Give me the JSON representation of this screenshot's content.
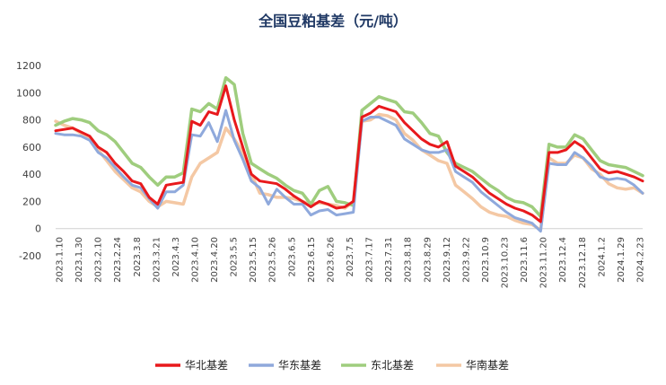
{
  "chart_data": {
    "type": "line",
    "title": "全国豆粕基差（元/吨）",
    "xlabel": "",
    "ylabel": "",
    "ylim": [
      -200,
      1200
    ],
    "yticks": [
      -200,
      0,
      200,
      400,
      600,
      800,
      1000,
      1200
    ],
    "grid": false,
    "legend_position": "bottom",
    "x_tick_labels": [
      "2023.1.10",
      "2023.1.30",
      "2023.2.10",
      "2023.2.24",
      "2023.3.8",
      "2023.3.21",
      "2023.4.3",
      "2023.4.10",
      "2023.4.20",
      "2023.5.5",
      "2023.5.15",
      "2023.5.26",
      "2023.6.5",
      "2023.6.15",
      "2023.6.26",
      "2023.7.5",
      "2023.7.17",
      "2023.7.31",
      "2023.8.18",
      "2023.8.29",
      "2023.9.12",
      "2023.9.22",
      "2023.10.9",
      "2023.10.23",
      "2023.11.6",
      "2023.11.20",
      "2023.12.4",
      "2023.12.18",
      "2024.1.2",
      "2024.1.29",
      "2024.2.23"
    ],
    "series": [
      {
        "name": "华北基差",
        "color": "#e8191c",
        "values": [
          720,
          730,
          740,
          710,
          680,
          600,
          560,
          480,
          420,
          350,
          330,
          230,
          180,
          320,
          330,
          340,
          790,
          760,
          860,
          840,
          1050,
          800,
          600,
          400,
          350,
          340,
          330,
          290,
          240,
          200,
          160,
          200,
          180,
          150,
          160,
          200,
          820,
          850,
          900,
          880,
          860,
          780,
          720,
          660,
          620,
          600,
          640,
          460,
          420,
          380,
          320,
          260,
          220,
          180,
          150,
          130,
          100,
          50,
          560,
          560,
          580,
          640,
          600,
          520,
          440,
          410,
          420,
          400,
          380,
          350
        ]
      },
      {
        "name": "华东基差",
        "color": "#8fa9dc",
        "values": [
          700,
          690,
          690,
          680,
          650,
          560,
          520,
          450,
          380,
          320,
          300,
          220,
          150,
          270,
          270,
          320,
          690,
          680,
          780,
          640,
          870,
          650,
          510,
          350,
          300,
          180,
          290,
          230,
          180,
          180,
          100,
          130,
          140,
          100,
          110,
          120,
          790,
          820,
          820,
          790,
          760,
          660,
          620,
          580,
          560,
          560,
          580,
          420,
          380,
          340,
          270,
          220,
          170,
          120,
          80,
          60,
          40,
          -20,
          480,
          470,
          470,
          560,
          520,
          460,
          380,
          360,
          370,
          360,
          320,
          260
        ]
      },
      {
        "name": "东北基差",
        "color": "#9fcd7e",
        "values": [
          760,
          790,
          810,
          800,
          780,
          720,
          690,
          640,
          560,
          480,
          450,
          380,
          320,
          380,
          380,
          410,
          880,
          860,
          920,
          880,
          1110,
          1060,
          700,
          480,
          440,
          400,
          370,
          320,
          280,
          260,
          180,
          280,
          310,
          200,
          190,
          170,
          870,
          920,
          970,
          950,
          930,
          860,
          850,
          780,
          700,
          680,
          560,
          480,
          450,
          420,
          370,
          320,
          280,
          230,
          200,
          190,
          160,
          90,
          620,
          600,
          600,
          690,
          660,
          580,
          500,
          470,
          460,
          450,
          420,
          390
        ]
      },
      {
        "name": "华南基差",
        "color": "#f4c8a4",
        "values": [
          790,
          760,
          740,
          700,
          660,
          580,
          500,
          420,
          360,
          300,
          270,
          200,
          160,
          200,
          190,
          180,
          380,
          480,
          520,
          560,
          740,
          660,
          560,
          400,
          260,
          250,
          230,
          230,
          220,
          200,
          180,
          190,
          180,
          170,
          150,
          200,
          790,
          800,
          840,
          830,
          800,
          700,
          650,
          580,
          540,
          500,
          480,
          320,
          270,
          220,
          160,
          120,
          100,
          90,
          60,
          40,
          30,
          -10,
          520,
          480,
          480,
          540,
          520,
          440,
          400,
          330,
          300,
          290,
          300,
          260
        ]
      }
    ]
  }
}
